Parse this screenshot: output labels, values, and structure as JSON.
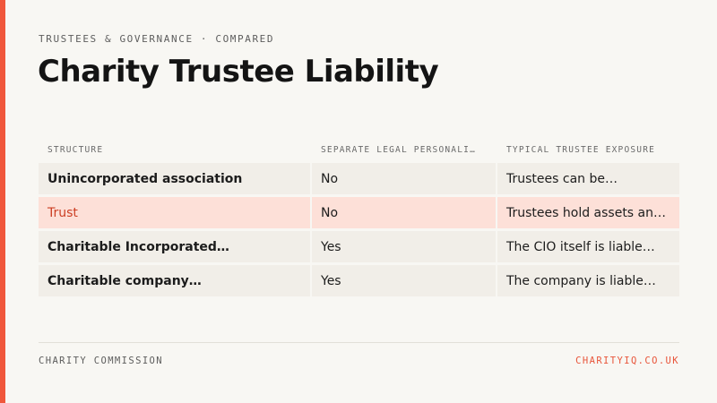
{
  "eyebrow": "TRUSTEES & GOVERNANCE · COMPARED",
  "title": "Charity Trustee Liability",
  "colors": {
    "accent": "#f0573b",
    "highlight_row": "#fde0d8",
    "row_bg": "#f1eee8",
    "highlight_text": "#cc3f24"
  },
  "table": {
    "headers": [
      "STRUCTURE",
      "SEPARATE LEGAL PERSONALI…",
      "TYPICAL TRUSTEE EXPOSURE"
    ],
    "rows": [
      {
        "structure": "Unincorporated association",
        "personality": "No",
        "exposure": "Trustees can be…",
        "highlighted": false
      },
      {
        "structure": "Trust",
        "personality": "No",
        "exposure": "Trustees hold assets an…",
        "highlighted": true
      },
      {
        "structure": "Charitable Incorporated…",
        "personality": "Yes",
        "exposure": "The CIO itself is liable…",
        "highlighted": false
      },
      {
        "structure": "Charitable company…",
        "personality": "Yes",
        "exposure": "The company is liable…",
        "highlighted": false
      }
    ]
  },
  "footer": {
    "source": "CHARITY COMMISSION",
    "site": "CHARITYIQ.CO.UK"
  }
}
